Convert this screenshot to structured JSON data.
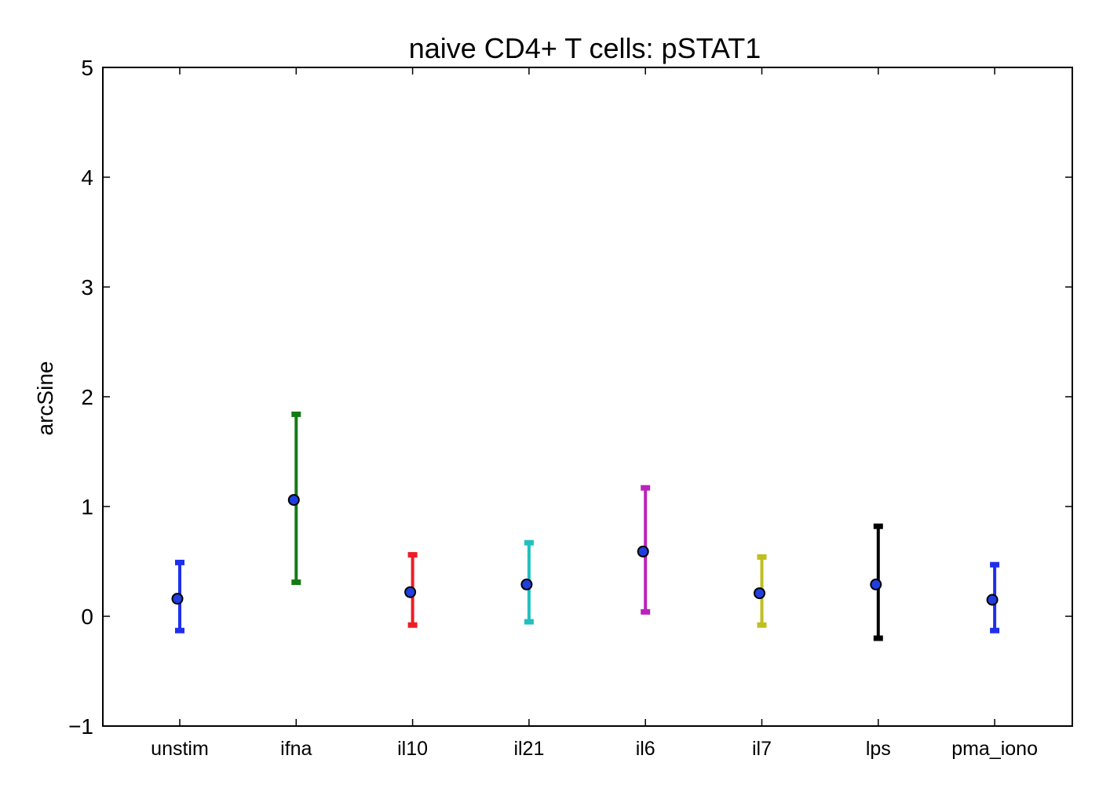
{
  "chart_data": {
    "type": "errorbar",
    "title": "naive CD4+ T cells: pSTAT1",
    "xlabel": "",
    "ylabel": "arcSine",
    "ylim": [
      -1,
      5
    ],
    "yticks": [
      -1,
      0,
      1,
      2,
      3,
      4,
      5
    ],
    "ytick_labels": [
      "−1",
      "0",
      "1",
      "2",
      "3",
      "4",
      "5"
    ],
    "grid": false,
    "marker_color": "#1f3fdf",
    "categories": [
      "unstim",
      "ifna",
      "il10",
      "il21",
      "il6",
      "il7",
      "lps",
      "pma_iono"
    ],
    "points": [
      {
        "category": "unstim",
        "value": 0.16,
        "lower": -0.13,
        "upper": 0.49,
        "color": "#1f2ff0"
      },
      {
        "category": "ifna",
        "value": 1.06,
        "lower": 0.31,
        "upper": 1.84,
        "color": "#147a14"
      },
      {
        "category": "il10",
        "value": 0.22,
        "lower": -0.08,
        "upper": 0.56,
        "color": "#ee1c24"
      },
      {
        "category": "il21",
        "value": 0.29,
        "lower": -0.05,
        "upper": 0.67,
        "color": "#22bfbf"
      },
      {
        "category": "il6",
        "value": 0.59,
        "lower": 0.04,
        "upper": 1.17,
        "color": "#bb22bb"
      },
      {
        "category": "il7",
        "value": 0.21,
        "lower": -0.08,
        "upper": 0.54,
        "color": "#bfbf22"
      },
      {
        "category": "lps",
        "value": 0.29,
        "lower": -0.2,
        "upper": 0.82,
        "color": "#000000"
      },
      {
        "category": "pma_iono",
        "value": 0.15,
        "lower": -0.13,
        "upper": 0.47,
        "color": "#1f2ff0"
      }
    ]
  }
}
